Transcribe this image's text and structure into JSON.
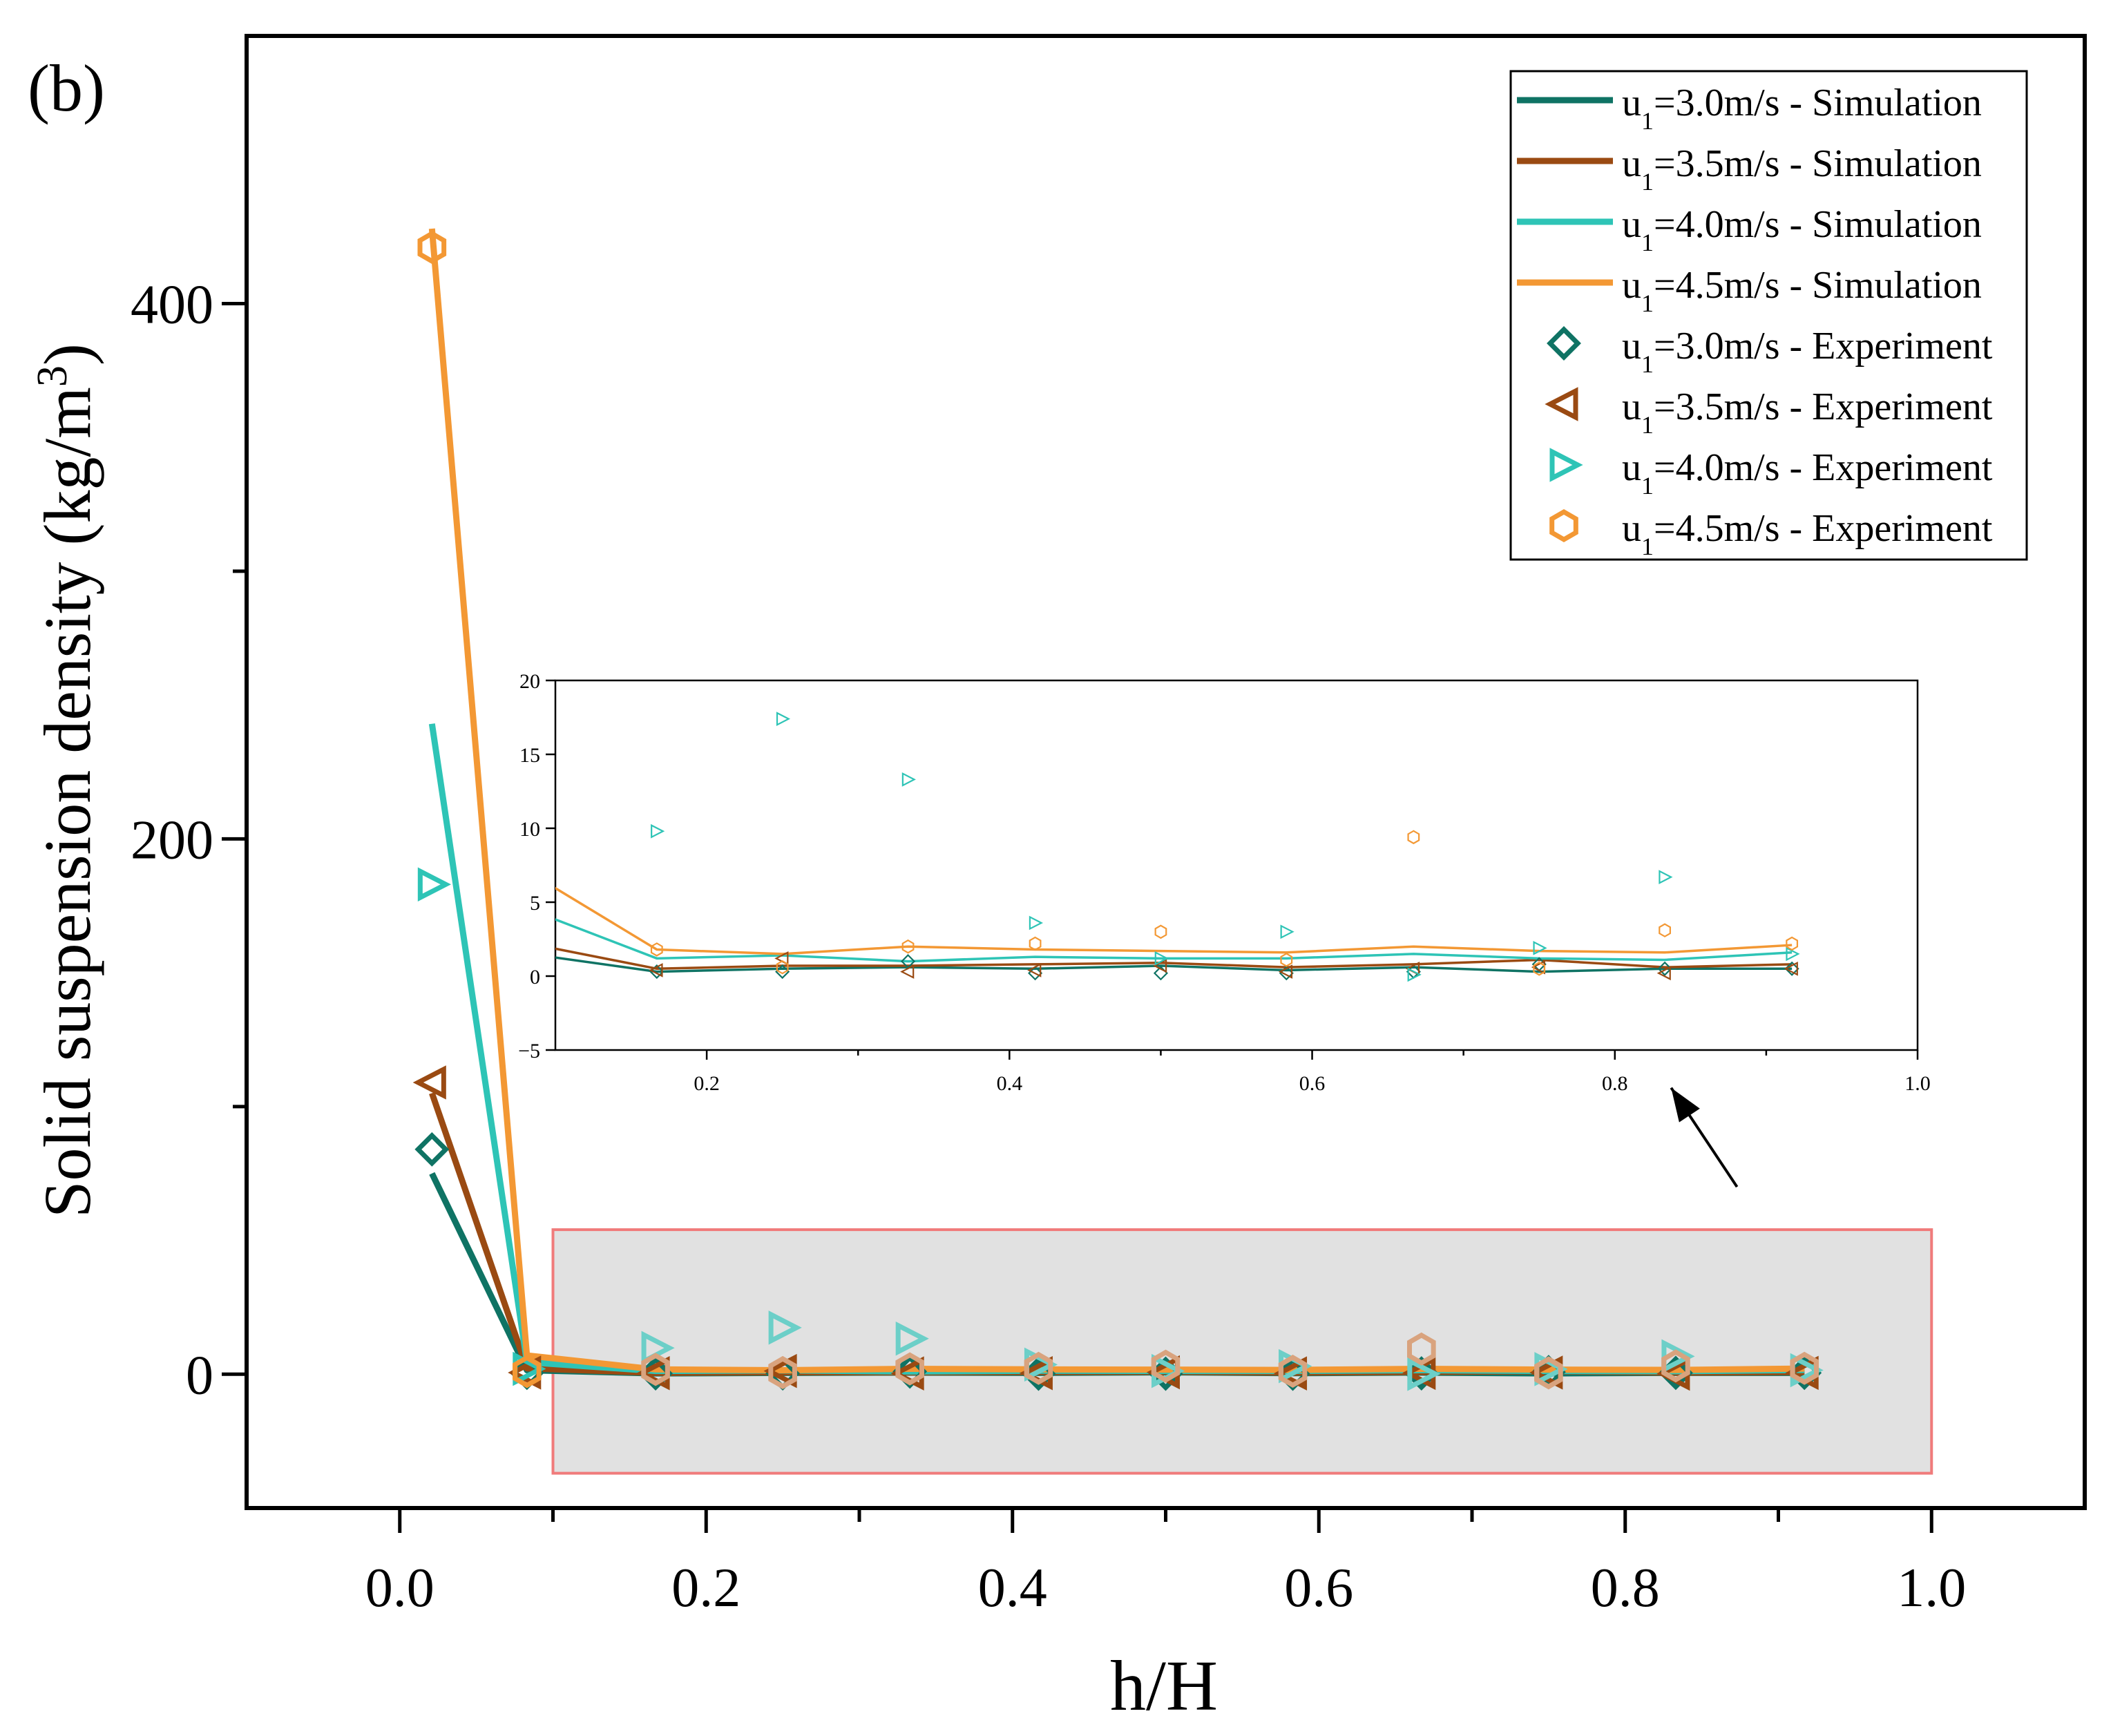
{
  "panel_label": "(b)",
  "colors": {
    "u30": "#0f7364",
    "u35": "#9a4a12",
    "u40": "#2ec4b6",
    "u45": "#f39834",
    "u45_faded": "#d9a37e",
    "u40_faded": "#6ccfc8",
    "highlight_fill": "#e1e1e1",
    "highlight_edge": "#f07b7b",
    "axis": "#000000"
  },
  "chart_data": [
    {
      "id": "main",
      "type": "line",
      "xlabel": "h/H",
      "ylabel": "Solid suspension density (kg/m3)",
      "ylabel_parts": {
        "pre": "Solid suspension density (kg/m",
        "sup": "3",
        "post": ")"
      },
      "xlim": [
        -0.1,
        1.1
      ],
      "ylim": [
        -50,
        500
      ],
      "x_major_ticks": [
        0.0,
        0.2,
        0.4,
        0.6,
        0.8,
        1.0
      ],
      "x_tick_labels": [
        "0.0",
        "0.2",
        "0.4",
        "0.6",
        "0.8",
        "1.0"
      ],
      "x_minor_ticks": [
        0.1,
        0.3,
        0.5,
        0.7,
        0.9
      ],
      "y_major_ticks": [
        0,
        200,
        400
      ],
      "y_tick_labels": [
        "0",
        "200",
        "400"
      ],
      "y_minor_ticks": [
        100,
        300
      ],
      "highlight_box": {
        "x": [
          0.1,
          1.0
        ],
        "y": [
          -37,
          54
        ]
      },
      "arrow": {
        "from": [
          0.873,
          70
        ],
        "to": [
          0.83,
          107
        ]
      },
      "legend_position": "top-right",
      "simulation": [
        {
          "name": "u1=3.0m/s - Simulation",
          "color_key": "u30",
          "x": [
            0.021,
            0.083,
            0.167,
            0.25,
            0.333,
            0.417,
            0.5,
            0.583,
            0.667,
            0.75,
            0.833,
            0.917
          ],
          "y": [
            75,
            1.5,
            0.3,
            0.5,
            0.6,
            0.5,
            0.7,
            0.4,
            0.6,
            0.3,
            0.5,
            0.5
          ]
        },
        {
          "name": "u1=3.5m/s - Simulation",
          "color_key": "u35",
          "x": [
            0.021,
            0.083,
            0.167,
            0.25,
            0.333,
            0.417,
            0.5,
            0.583,
            0.667,
            0.75,
            0.833,
            0.917
          ],
          "y": [
            105,
            2.2,
            0.5,
            0.7,
            0.7,
            0.8,
            0.9,
            0.6,
            0.8,
            1.1,
            0.6,
            0.8
          ]
        },
        {
          "name": "u1=4.0m/s - Simulation",
          "color_key": "u40",
          "x": [
            0.021,
            0.083,
            0.167,
            0.25,
            0.333,
            0.417,
            0.5,
            0.583,
            0.667,
            0.75,
            0.833,
            0.917
          ],
          "y": [
            243,
            4.5,
            1.2,
            1.4,
            1.0,
            1.3,
            1.2,
            1.2,
            1.5,
            1.2,
            1.1,
            1.6
          ]
        },
        {
          "name": "u1=4.5m/s - Simulation",
          "color_key": "u45",
          "x": [
            0.021,
            0.083,
            0.167,
            0.25,
            0.333,
            0.417,
            0.5,
            0.583,
            0.667,
            0.75,
            0.833,
            0.917
          ],
          "y": [
            428,
            7.0,
            1.8,
            1.5,
            2.0,
            1.8,
            1.7,
            1.6,
            2.0,
            1.7,
            1.6,
            2.1
          ]
        }
      ],
      "experiment": [
        {
          "name": "u1=3.0m/s - Experiment",
          "color_key": "u30",
          "marker": "diamond",
          "x": [
            0.021,
            0.083,
            0.167,
            0.25,
            0.333,
            0.417,
            0.5,
            0.583,
            0.667,
            0.75,
            0.833,
            0.917
          ],
          "y": [
            84,
            0.5,
            0.3,
            0.3,
            1.0,
            0.2,
            0.2,
            0.2,
            0.3,
            0.8,
            0.5,
            0.5
          ]
        },
        {
          "name": "u1=3.5m/s - Experiment",
          "color_key": "u35",
          "marker": "triangle-left",
          "x": [
            0.021,
            0.083,
            0.167,
            0.25,
            0.333,
            0.417,
            0.5,
            0.583,
            0.667,
            0.75,
            0.833,
            0.917
          ],
          "y": [
            109,
            0.6,
            0.4,
            1.2,
            0.3,
            0.4,
            0.7,
            0.3,
            0.5,
            0.6,
            0.2,
            0.5
          ]
        },
        {
          "name": "u1=4.0m/s - Experiment",
          "color_key": "u40",
          "marker": "triangle-right",
          "x": [
            0.021,
            0.083,
            0.167,
            0.25,
            0.333,
            0.417,
            0.5,
            0.583,
            0.667,
            0.75,
            0.833,
            0.917
          ],
          "y": [
            183,
            2.0,
            9.8,
            17.4,
            13.3,
            3.6,
            1.2,
            3.0,
            0.1,
            1.9,
            6.7,
            1.5
          ]
        },
        {
          "name": "u1=4.5m/s - Experiment",
          "color_key": "u45",
          "marker": "hexagon",
          "x": [
            0.021,
            0.083,
            0.167,
            0.25,
            0.333,
            0.417,
            0.5,
            0.583,
            0.667,
            0.75,
            0.833,
            0.917
          ],
          "y": [
            421,
            1.0,
            1.8,
            0.6,
            2.0,
            2.2,
            3.0,
            1.1,
            9.4,
            0.5,
            3.1,
            2.2
          ]
        }
      ]
    },
    {
      "id": "inset",
      "type": "line",
      "xlim": [
        0.1,
        1.0
      ],
      "ylim": [
        -5,
        20
      ],
      "x_major_ticks": [
        0.2,
        0.4,
        0.6,
        0.8,
        1.0
      ],
      "x_tick_labels": [
        "0.2",
        "0.4",
        "0.6",
        "0.8",
        "1.0"
      ],
      "x_minor_ticks": [
        0.3,
        0.5,
        0.7,
        0.9
      ],
      "y_major_ticks": [
        -5,
        0,
        5,
        10,
        15,
        20
      ],
      "y_tick_labels": [
        "−5",
        "0",
        "5",
        "10",
        "15",
        "20"
      ],
      "series_source": "main"
    }
  ],
  "legend": {
    "entries": [
      {
        "base": "u",
        "sub": "1",
        "rest": "=3.0m/s - Simulation",
        "color_key": "u30",
        "kind": "line"
      },
      {
        "base": "u",
        "sub": "1",
        "rest": "=3.5m/s - Simulation",
        "color_key": "u35",
        "kind": "line"
      },
      {
        "base": "u",
        "sub": "1",
        "rest": "=4.0m/s - Simulation",
        "color_key": "u40",
        "kind": "line"
      },
      {
        "base": "u",
        "sub": "1",
        "rest": "=4.5m/s - Simulation",
        "color_key": "u45",
        "kind": "line"
      },
      {
        "base": "u",
        "sub": "1",
        "rest": "=3.0m/s - Experiment",
        "color_key": "u30",
        "kind": "diamond"
      },
      {
        "base": "u",
        "sub": "1",
        "rest": "=3.5m/s - Experiment",
        "color_key": "u35",
        "kind": "triangle-left"
      },
      {
        "base": "u",
        "sub": "1",
        "rest": "=4.0m/s - Experiment",
        "color_key": "u40",
        "kind": "triangle-right"
      },
      {
        "base": "u",
        "sub": "1",
        "rest": "=4.5m/s - Experiment",
        "color_key": "u45",
        "kind": "hexagon"
      }
    ]
  }
}
